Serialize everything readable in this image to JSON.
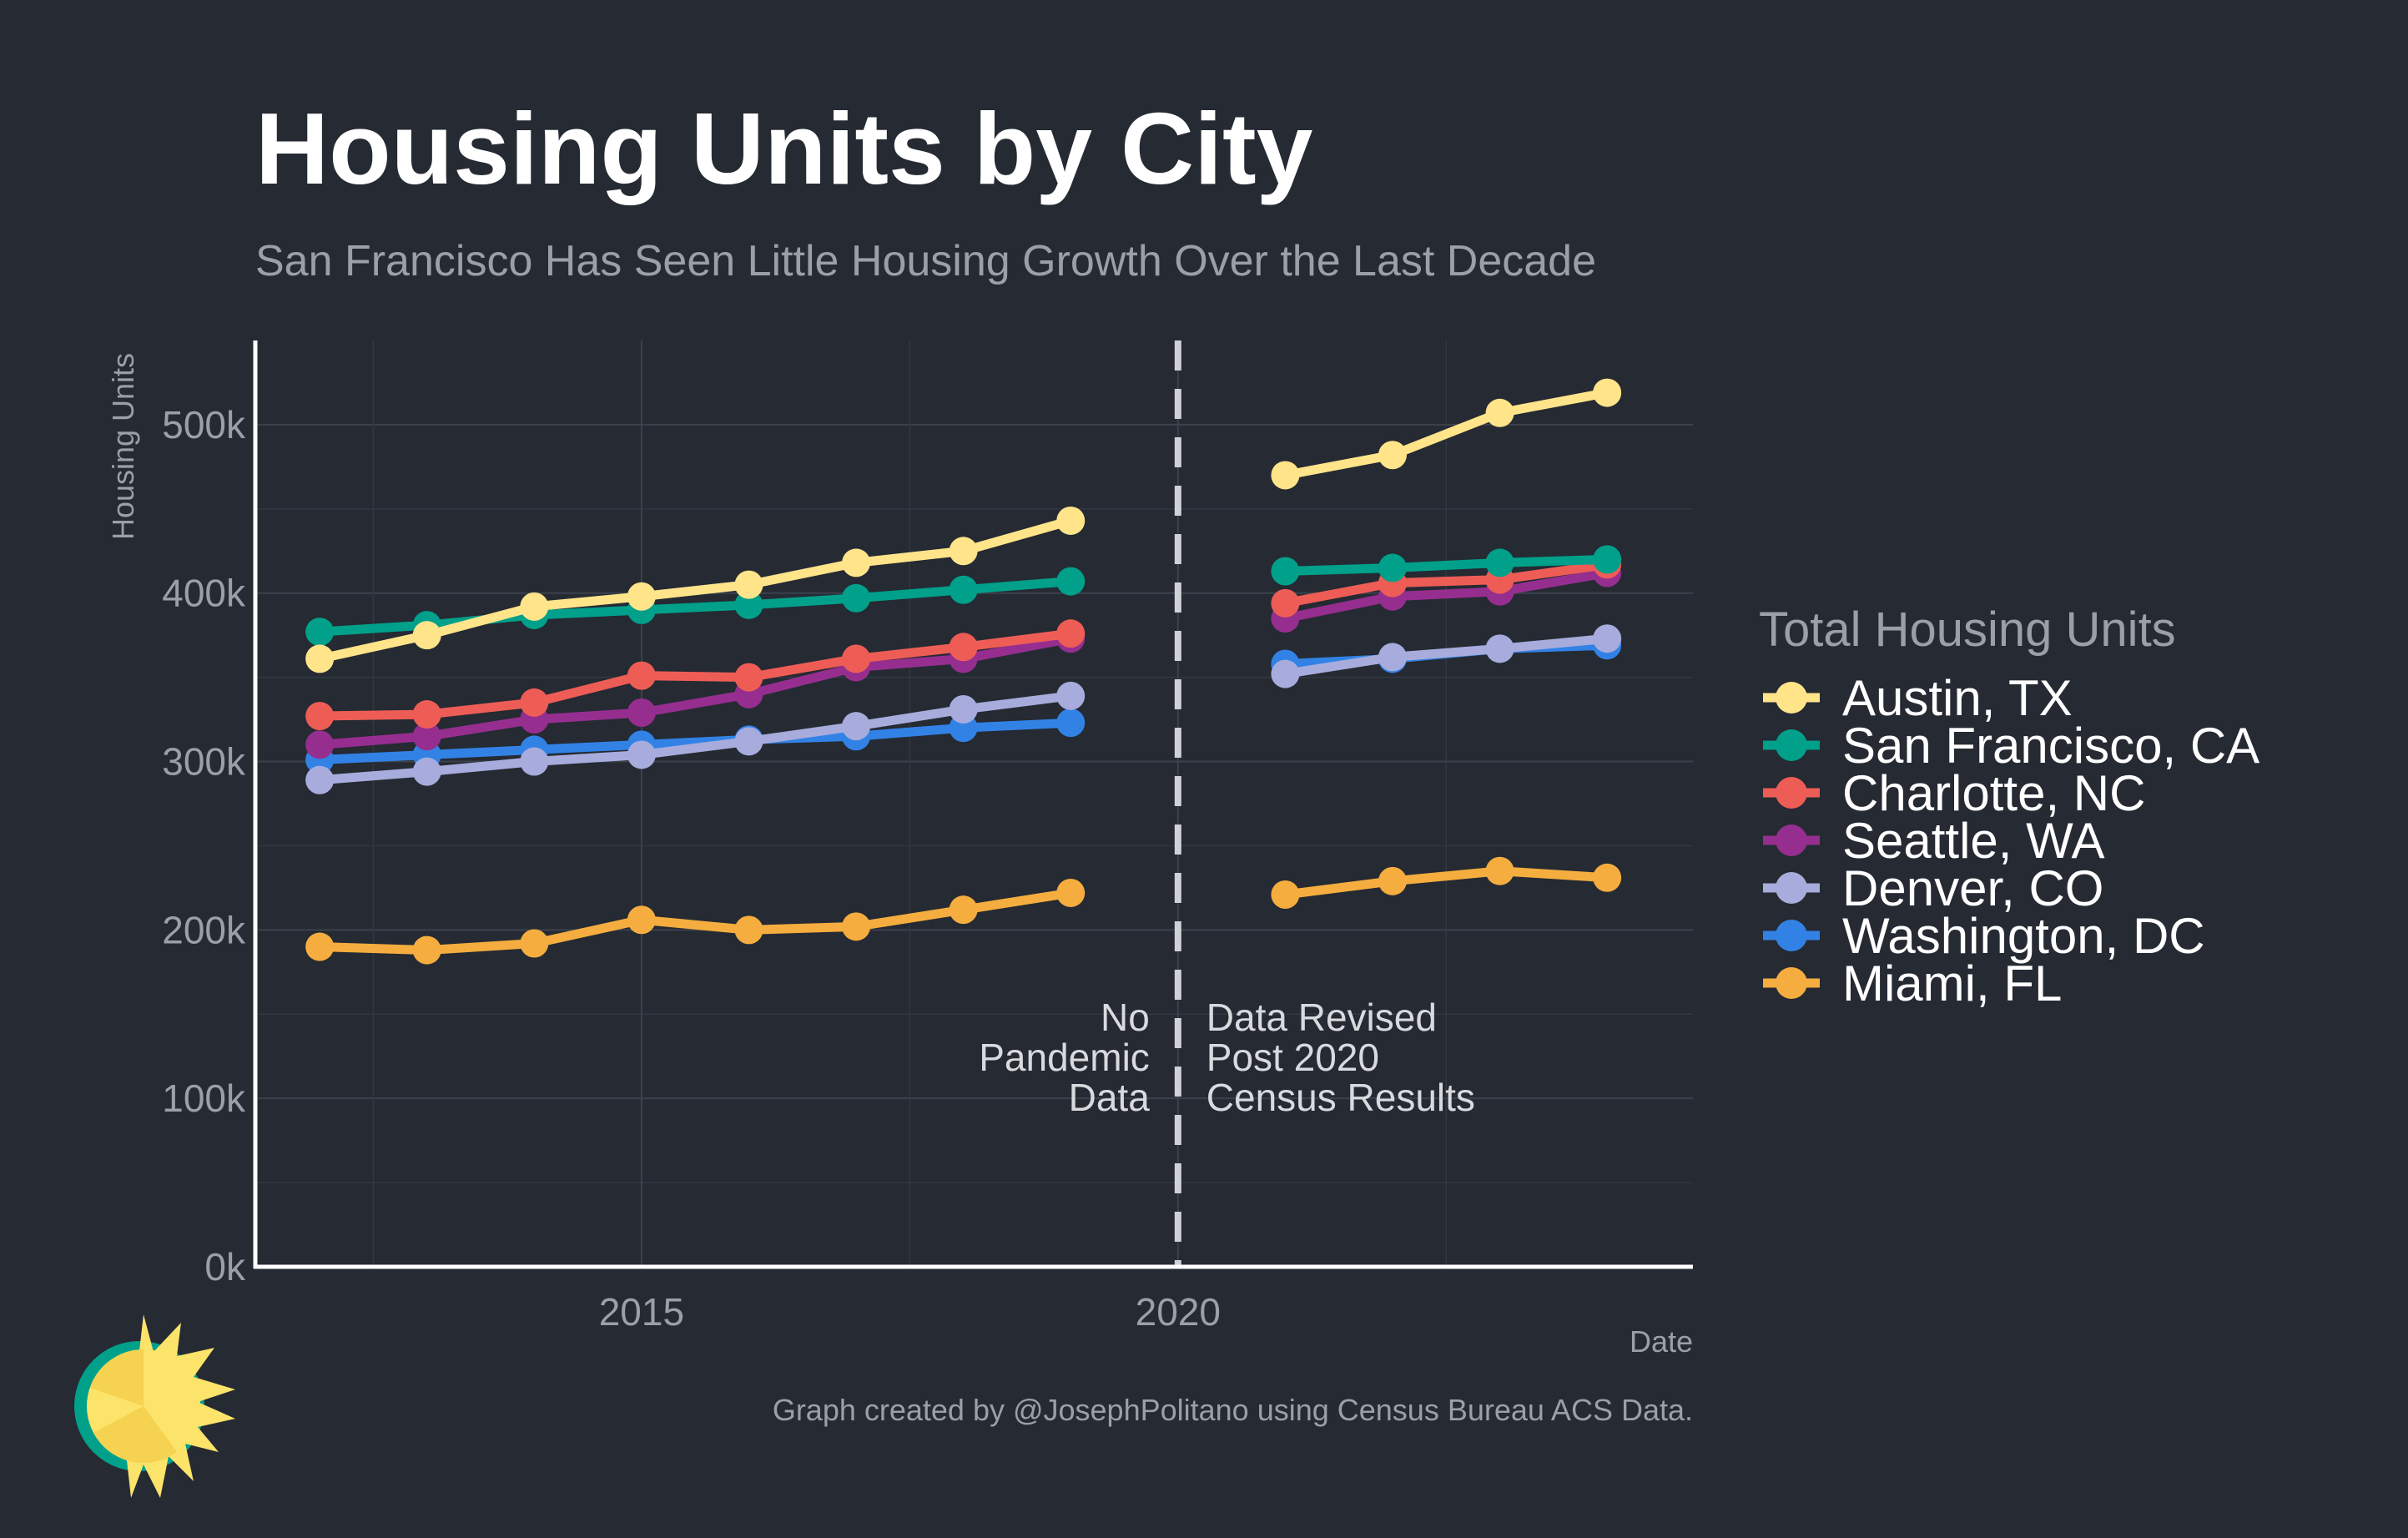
{
  "chart_data": {
    "type": "line",
    "title": "Housing Units by City",
    "subtitle": "San Francisco Has Seen Little Housing Growth Over the Last Decade",
    "xlabel": "Date",
    "ylabel": "Housing Units",
    "xlim": [
      2011.4,
      2024.8
    ],
    "ylim": [
      0,
      550000
    ],
    "x_ticks": [
      2015,
      2020
    ],
    "y_ticks": [
      0,
      100000,
      200000,
      300000,
      400000,
      500000
    ],
    "y_tick_labels": [
      "0k",
      "100k",
      "200k",
      "300k",
      "400k",
      "500k"
    ],
    "grid": true,
    "legend": {
      "title": "Total Housing Units",
      "position": "right"
    },
    "series": [
      {
        "name": "Austin, TX",
        "color": "#ffe48a",
        "x": [
          2012,
          2013,
          2014,
          2015,
          2016,
          2017,
          2018,
          2019,
          2021,
          2022,
          2023,
          2024
        ],
        "values": [
          361000,
          375000,
          392000,
          398000,
          405000,
          418000,
          425000,
          443000,
          470000,
          482000,
          507000,
          519000
        ]
      },
      {
        "name": "San Francisco, CA",
        "color": "#00a08a",
        "x": [
          2012,
          2013,
          2014,
          2015,
          2016,
          2017,
          2018,
          2019,
          2021,
          2022,
          2023,
          2024
        ],
        "values": [
          377000,
          381000,
          387000,
          390000,
          393000,
          397000,
          402000,
          407000,
          413000,
          415000,
          418000,
          420000
        ]
      },
      {
        "name": "Charlotte, NC",
        "color": "#ee5d55",
        "x": [
          2012,
          2013,
          2014,
          2015,
          2016,
          2017,
          2018,
          2019,
          2021,
          2022,
          2023,
          2024
        ],
        "values": [
          327000,
          328000,
          335000,
          351000,
          350000,
          361000,
          368000,
          376000,
          394000,
          406000,
          408000,
          417000
        ]
      },
      {
        "name": "Seattle, WA",
        "color": "#962e8f",
        "x": [
          2012,
          2013,
          2014,
          2015,
          2016,
          2017,
          2018,
          2019,
          2021,
          2022,
          2023,
          2024
        ],
        "values": [
          310000,
          315000,
          325000,
          329000,
          340000,
          356000,
          361000,
          373000,
          385000,
          398000,
          401000,
          412000
        ]
      },
      {
        "name": "Denver, CO",
        "color": "#a7acdc",
        "x": [
          2012,
          2013,
          2014,
          2015,
          2016,
          2017,
          2018,
          2019,
          2021,
          2022,
          2023,
          2024
        ],
        "values": [
          289000,
          294000,
          300000,
          304000,
          312000,
          321000,
          331000,
          339000,
          352000,
          362000,
          367000,
          373000
        ]
      },
      {
        "name": "Washington, DC",
        "color": "#3282e6",
        "x": [
          2012,
          2013,
          2014,
          2015,
          2016,
          2017,
          2018,
          2019,
          2021,
          2022,
          2023,
          2024
        ],
        "values": [
          301000,
          304000,
          307000,
          310000,
          313000,
          315000,
          320000,
          323000,
          358000,
          361000,
          367000,
          369000
        ]
      },
      {
        "name": "Miami, FL",
        "color": "#f4ad3e",
        "x": [
          2012,
          2013,
          2014,
          2015,
          2016,
          2017,
          2018,
          2019,
          2021,
          2022,
          2023,
          2024
        ],
        "values": [
          190000,
          188000,
          192000,
          206000,
          200000,
          202000,
          212000,
          222000,
          221000,
          229000,
          235000,
          231000
        ]
      }
    ],
    "vertical_line": {
      "x": 2020,
      "style": "dashed",
      "color": "#d0d2d6"
    },
    "annotations": {
      "left": [
        "No",
        "Pandemic",
        "Data"
      ],
      "right": [
        "Data Revised",
        "Post 2020",
        "Census Results"
      ]
    },
    "caption": "Graph created by @JosephPolitano using Census Bureau ACS Data."
  }
}
